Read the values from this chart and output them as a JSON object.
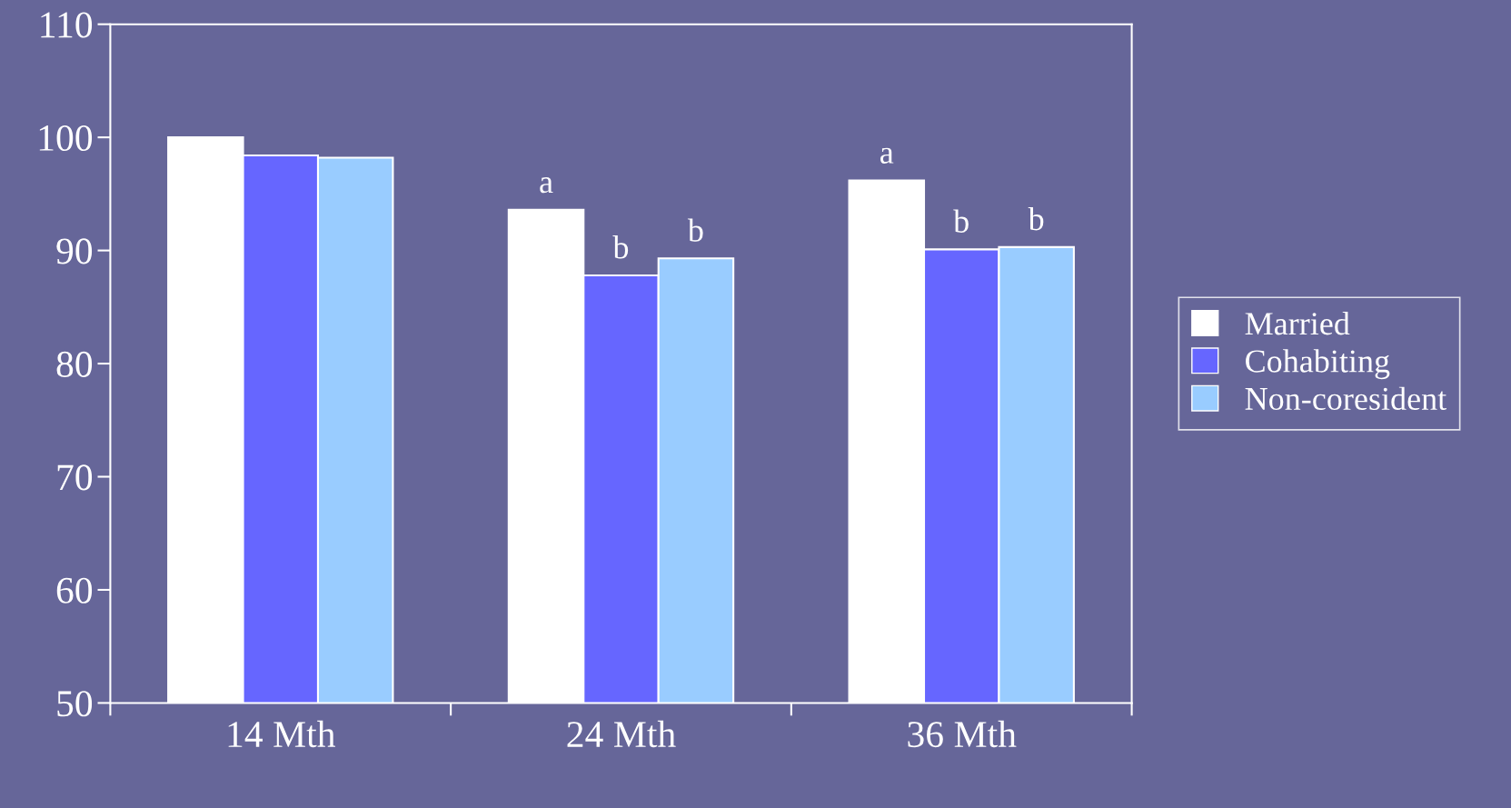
{
  "chart_data": {
    "type": "bar",
    "categories": [
      "14 Mth",
      "24 Mth",
      "36 Mth"
    ],
    "series": [
      {
        "name": "Married",
        "color": "#ffffff",
        "values": [
          100.0,
          93.6,
          96.2
        ],
        "value_labels": [
          null,
          "a",
          "a"
        ]
      },
      {
        "name": "Cohabiting",
        "color": "#6666ff",
        "values": [
          98.4,
          87.8,
          90.1
        ],
        "value_labels": [
          null,
          "b",
          "b"
        ]
      },
      {
        "name": "Non-coresident",
        "color": "#99ccff",
        "values": [
          98.2,
          89.3,
          90.3
        ],
        "value_labels": [
          null,
          "b",
          "b"
        ]
      }
    ],
    "ylim": [
      50,
      110
    ],
    "yticks": [
      50,
      60,
      70,
      80,
      90,
      100,
      110
    ],
    "grid": false,
    "legend": "right"
  }
}
